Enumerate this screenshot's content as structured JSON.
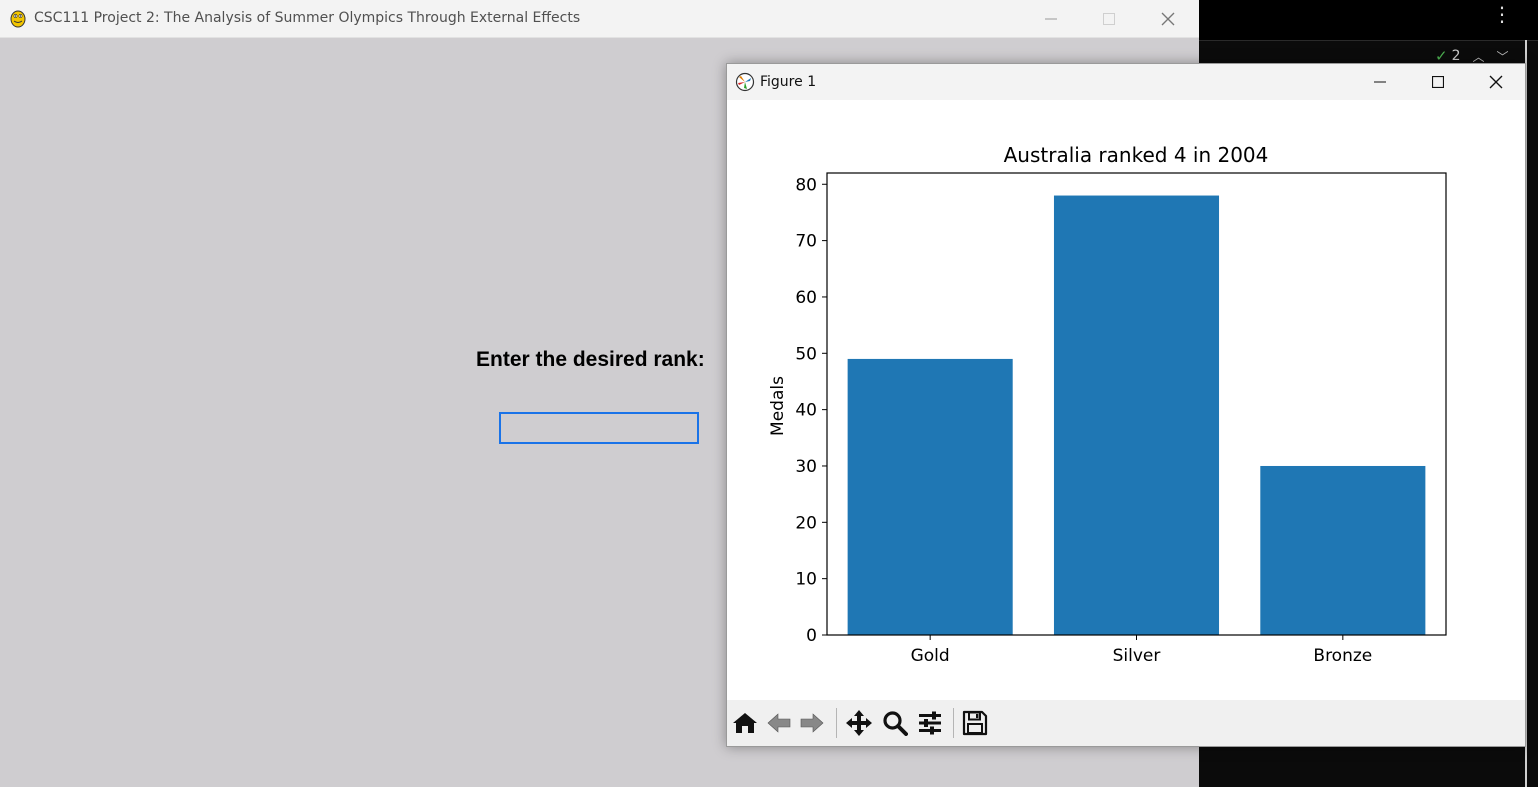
{
  "main_window": {
    "title": "CSC111 Project 2: The Analysis of Summer Olympics Through External Effects",
    "prompt_label": "Enter the desired rank:",
    "rank_input": {
      "value": "",
      "placeholder": ""
    }
  },
  "background_editor": {
    "match_count": "2"
  },
  "figure_window": {
    "title": "Figure 1",
    "toolbar": [
      "home-icon",
      "back-icon",
      "forward-icon",
      "pan-icon",
      "zoom-icon",
      "configure-subplots-icon",
      "save-icon"
    ]
  },
  "chart_data": {
    "type": "bar",
    "title": "Australia ranked 4 in 2004",
    "xlabel": "",
    "ylabel": "Medals",
    "categories": [
      "Gold",
      "Silver",
      "Bronze"
    ],
    "values": [
      49,
      78,
      30
    ],
    "ylim": [
      0,
      82
    ],
    "yticks": [
      0,
      10,
      20,
      30,
      40,
      50,
      60,
      70,
      80
    ],
    "grid": false,
    "bar_color": "#1f77b4"
  },
  "colors": {
    "main_background": "#cfcdd0",
    "input_border": "#1a73e8",
    "bar": "#1f77b4"
  }
}
